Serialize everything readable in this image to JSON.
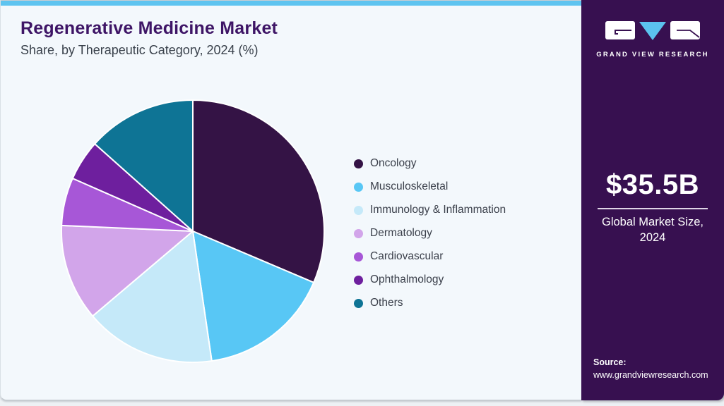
{
  "chart_data": {
    "type": "pie",
    "title": "Regenerative Medicine Market",
    "subtitle": "Share, by Therapeutic Category, 2024 (%)",
    "unit": "%",
    "start_angle_deg": 0,
    "direction": "clockwise",
    "legend_position": "right",
    "slices": [
      {
        "label": "Oncology",
        "value": 31.4,
        "color": "#341345"
      },
      {
        "label": "Musculoskeletal",
        "value": 16.3,
        "color": "#58c7f5"
      },
      {
        "label": "Immunology & Inflammation",
        "value": 16.1,
        "color": "#c5e9f9"
      },
      {
        "label": "Dermatology",
        "value": 11.9,
        "color": "#d2a5ea"
      },
      {
        "label": "Cardiovascular",
        "value": 5.9,
        "color": "#a757d7"
      },
      {
        "label": "Ophthalmology",
        "value": 5.0,
        "color": "#6e1f9e"
      },
      {
        "label": "Others",
        "value": 13.4,
        "color": "#0e7495"
      }
    ]
  },
  "sidebar": {
    "logo": {
      "brand": "GRAND VIEW RESEARCH",
      "icon_colors": {
        "blocks": "#ffffff",
        "triangle": "#5bc2ee",
        "marks": "#371050"
      }
    },
    "market_size": {
      "value": "$35.5B",
      "caption": "Global Market Size, 2024"
    },
    "source": {
      "label": "Source:",
      "url": "www.grandviewresearch.com"
    }
  },
  "colors": {
    "top_bar": "#5ec4f0",
    "card_background": "#f3f8fc",
    "sidebar_background": "#371050",
    "title_text": "#3e1566",
    "subtitle_text": "#39414b",
    "legend_text": "#3a3f4a"
  }
}
